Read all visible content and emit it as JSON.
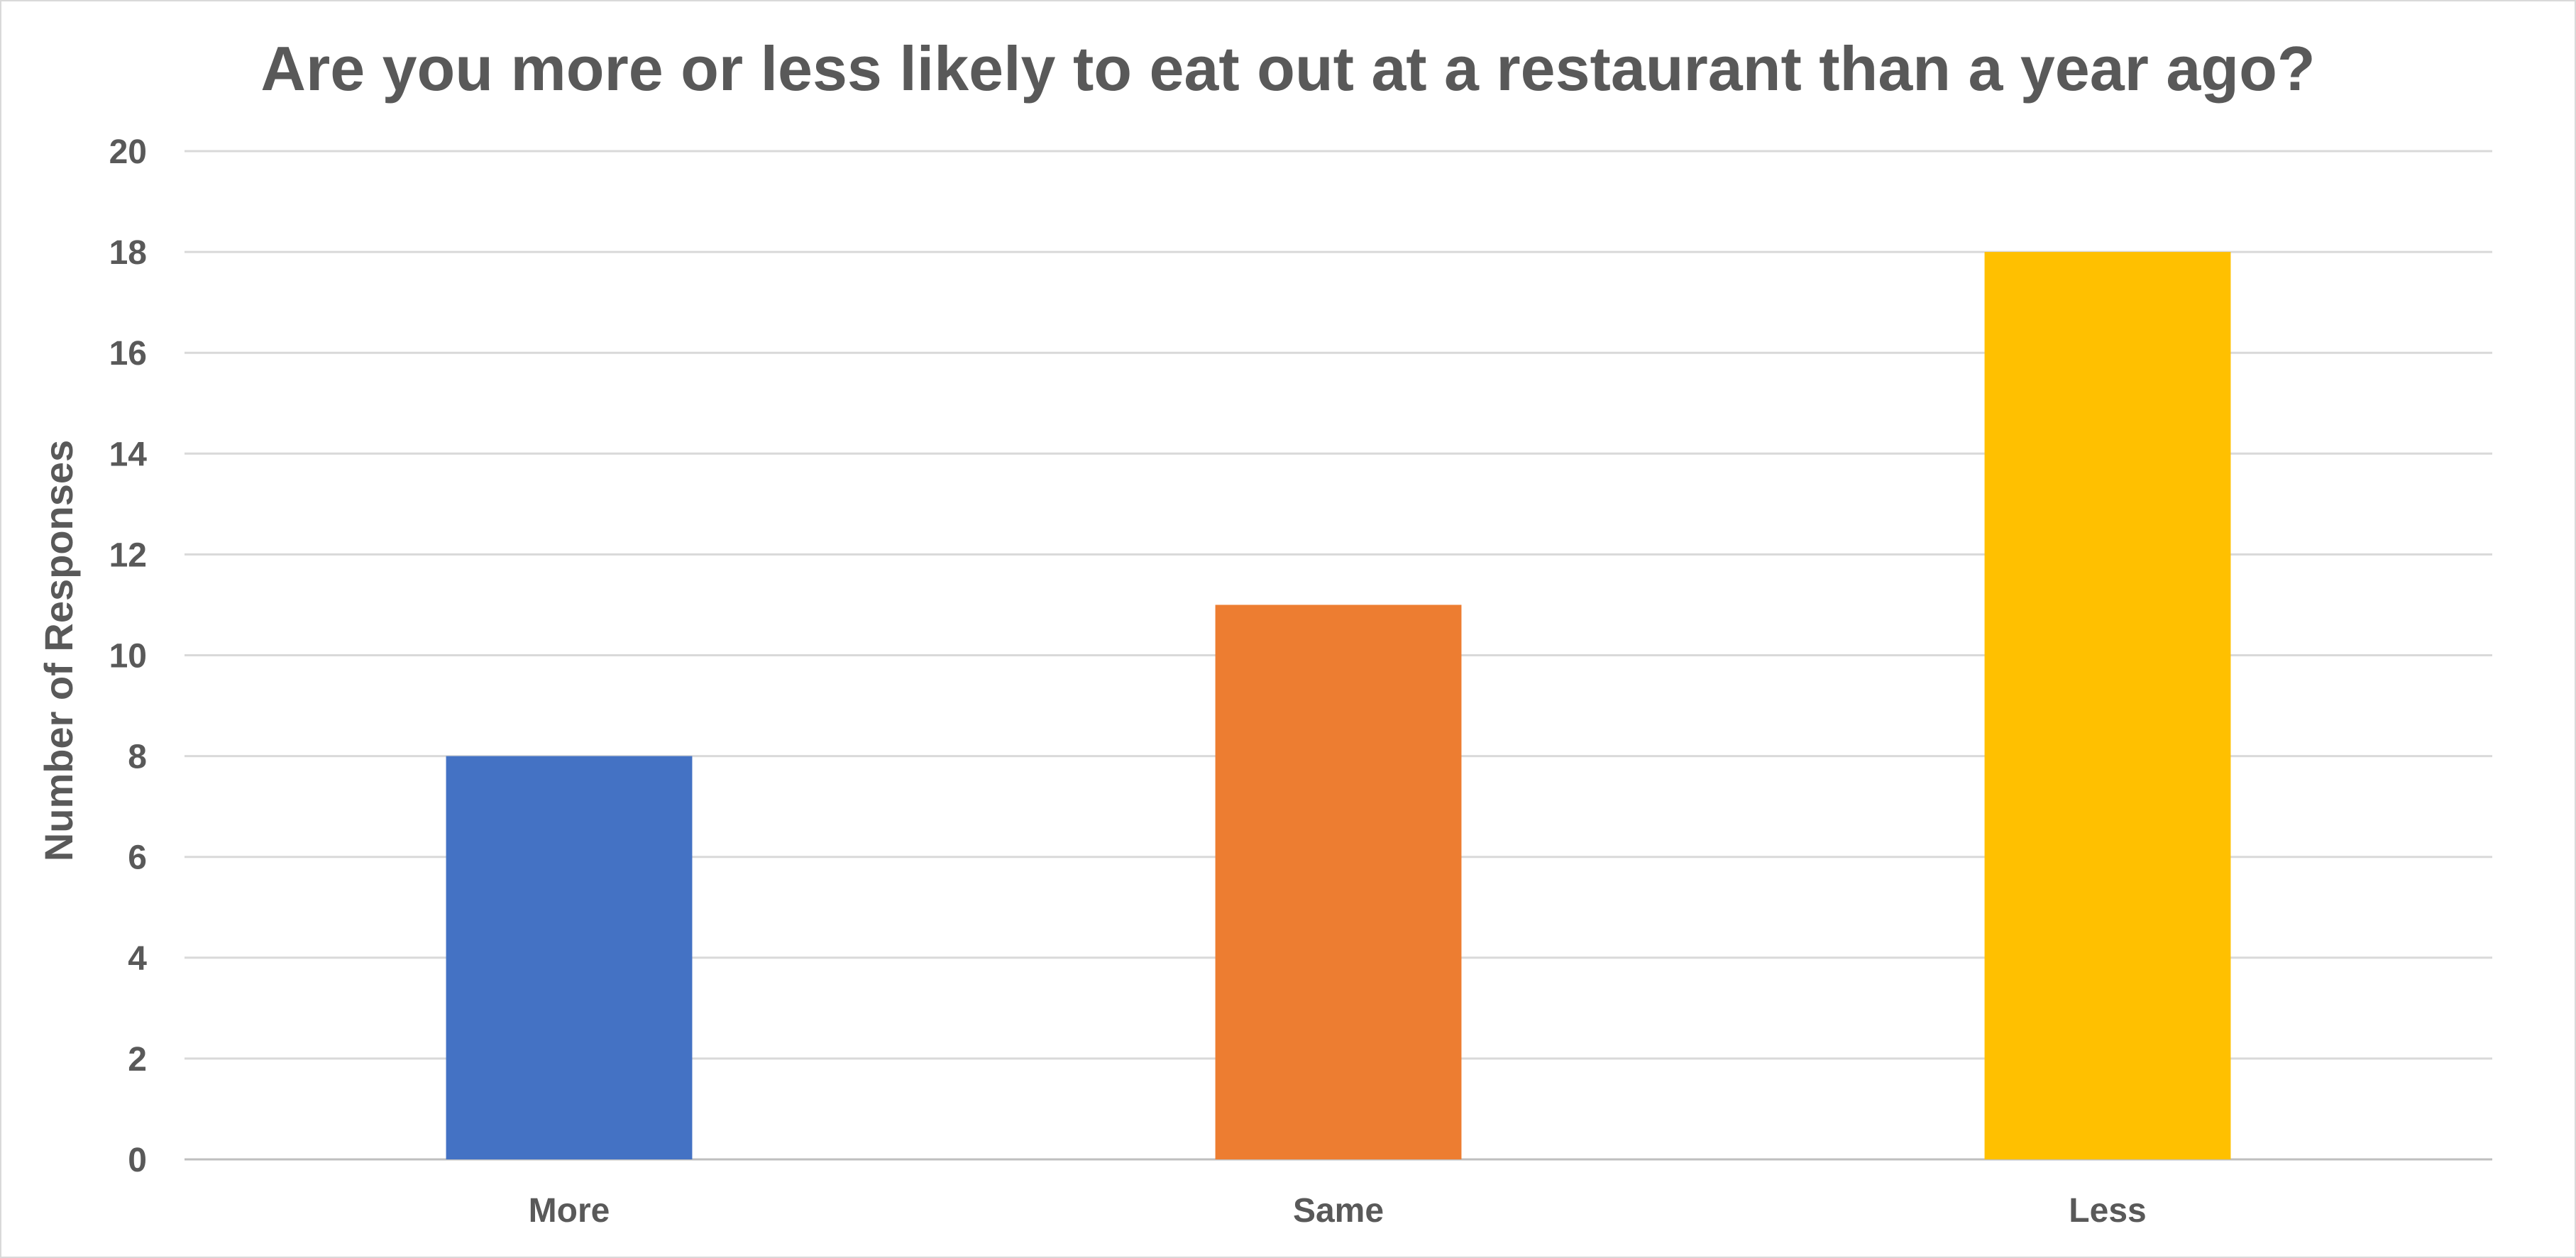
{
  "chart_data": {
    "type": "bar",
    "title": "Are you more or less likely to eat out at a restaurant than a year ago?",
    "xlabel": "",
    "ylabel": "Number of Responses",
    "categories": [
      "More",
      "Same",
      "Less"
    ],
    "values": [
      8,
      11,
      18
    ],
    "colors": [
      "#4472c4",
      "#ed7d31",
      "#ffc000"
    ],
    "ylim": [
      0,
      20
    ],
    "yticks": [
      0,
      2,
      4,
      6,
      8,
      10,
      12,
      14,
      16,
      18,
      20
    ],
    "grid": true,
    "legend": "none"
  }
}
